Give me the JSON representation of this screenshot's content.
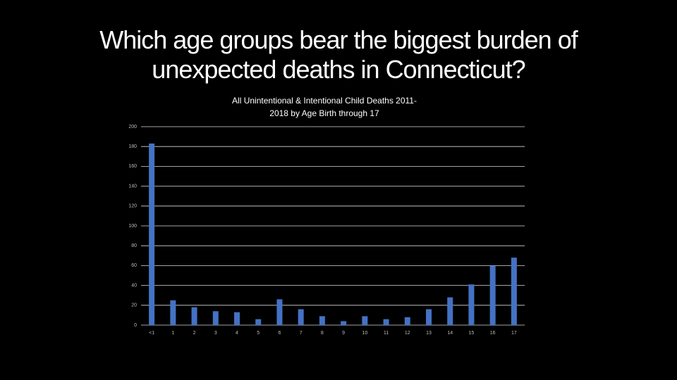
{
  "slide_title": "Which age groups bear the biggest burden of unexpected deaths in Connecticut?",
  "chart_data": {
    "type": "bar",
    "title": "All Unintentional & Intentional Child Deaths 2011-2018 by Age Birth through 17",
    "categories": [
      "<1",
      "1",
      "2",
      "3",
      "4",
      "5",
      "6",
      "7",
      "8",
      "9",
      "10",
      "11",
      "12",
      "13",
      "14",
      "15",
      "16",
      "17"
    ],
    "values": [
      183,
      25,
      18,
      14,
      13,
      6,
      26,
      16,
      9,
      4,
      9,
      6,
      8,
      16,
      28,
      41,
      60,
      68
    ],
    "color": "#4472c4",
    "ylim": [
      0,
      200
    ],
    "yticks": [
      0,
      20,
      40,
      60,
      80,
      100,
      120,
      140,
      160,
      180,
      200
    ],
    "grid": true
  }
}
